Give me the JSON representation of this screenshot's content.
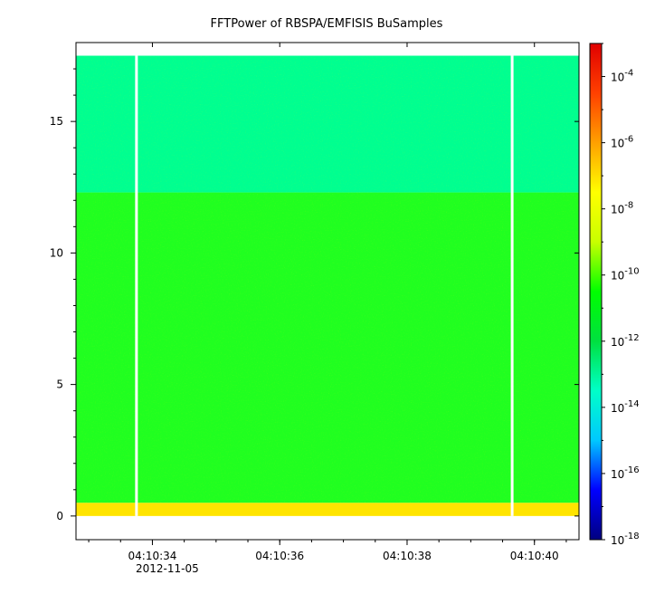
{
  "chart_data": {
    "type": "heatmap",
    "title": "FFTPower of RBSPA/EMFISIS  BuSamples",
    "xlabel": "",
    "ylabel": "",
    "date_label": "2012-11-05",
    "x_ticks": [
      "04:10:34",
      "04:10:36",
      "04:10:38",
      "04:10:40"
    ],
    "x_range": [
      "04:10:32.8",
      "04:10:40.7"
    ],
    "y_ticks": [
      0,
      5,
      10,
      15
    ],
    "y_range": [
      -0.9,
      18.0
    ],
    "colorbar": {
      "scale": "log",
      "range": [
        1e-18,
        0.001
      ],
      "ticks": [
        "10^-4",
        "10^-6",
        "10^-8",
        "10^-10",
        "10^-12",
        "10^-14",
        "10^-16",
        "10^-18"
      ],
      "colormap": [
        "#000080",
        "#0000ff",
        "#00c8ff",
        "#00ffc8",
        "#00e040",
        "#00ff00",
        "#c8ff00",
        "#ffff00",
        "#ffa000",
        "#ff4000",
        "#e00000"
      ]
    },
    "data_region": {
      "x_start": "04:10:32.8",
      "x_end": "04:10:40.7",
      "y_min": 0,
      "y_max": 17.5
    },
    "bands": [
      {
        "y_from": 12.3,
        "y_to": 17.5,
        "power": "1e-12",
        "color": "#00ff90"
      },
      {
        "y_from": 0.5,
        "y_to": 12.3,
        "power": "1e-10",
        "color": "#20ff20"
      },
      {
        "y_from": 0.0,
        "y_to": 0.5,
        "power": "1e-8",
        "color": "#ffe400"
      }
    ],
    "gaps": [
      "04:10:33.75",
      "04:10:39.65"
    ],
    "grid": false,
    "legend": "colorbar-right"
  }
}
